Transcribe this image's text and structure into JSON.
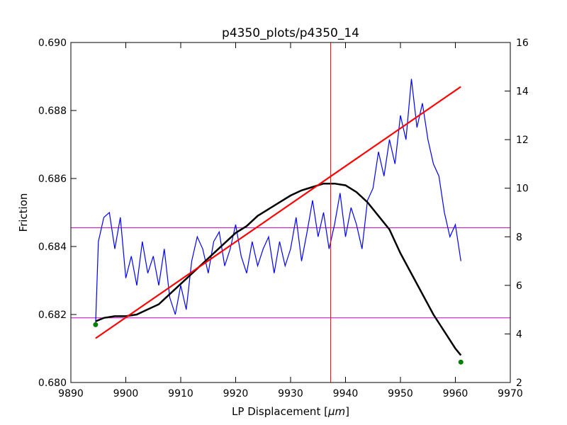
{
  "chart_data": {
    "type": "line",
    "title": "p4350_plots/p4350_14",
    "xlabel": "LP Displacement [",
    "xlabel_unit": "μm",
    "xlabel_close": "]",
    "ylabel": "Friction",
    "y2label": "",
    "xlim": [
      9890,
      9970
    ],
    "ylim": [
      0.68,
      0.69
    ],
    "y2lim": [
      2,
      16
    ],
    "x_ticks": [
      "9890",
      "9900",
      "9910",
      "9920",
      "9930",
      "9940",
      "9950",
      "9960",
      "9970"
    ],
    "y_ticks": [
      "0.680",
      "0.682",
      "0.684",
      "0.686",
      "0.688",
      "0.690"
    ],
    "y2_ticks": [
      "2",
      "4",
      "6",
      "8",
      "10",
      "12",
      "14",
      "16"
    ],
    "grid": false,
    "colors": {
      "friction": "#000000",
      "right_axis_series": "#0000ff",
      "fit_line": "#ff0000",
      "vertical_marker": "#ff0000",
      "horizontal_markers": "#bf00bf",
      "endpoints": "#008000"
    },
    "friction_series": {
      "axis": "left",
      "points": [
        [
          9894.5,
          0.6818
        ],
        [
          9896,
          0.6819
        ],
        [
          9898,
          0.68195
        ],
        [
          9900,
          0.68195
        ],
        [
          9902,
          0.682
        ],
        [
          9904,
          0.68215
        ],
        [
          9906,
          0.6823
        ],
        [
          9908,
          0.6826
        ],
        [
          9910,
          0.6829
        ],
        [
          9912,
          0.6832
        ],
        [
          9914,
          0.6835
        ],
        [
          9916,
          0.6838
        ],
        [
          9918,
          0.6841
        ],
        [
          9920,
          0.6844
        ],
        [
          9922,
          0.6846
        ],
        [
          9924,
          0.6849
        ],
        [
          9926,
          0.6851
        ],
        [
          9928,
          0.6853
        ],
        [
          9930,
          0.6855
        ],
        [
          9932,
          0.68565
        ],
        [
          9934,
          0.68575
        ],
        [
          9936,
          0.68585
        ],
        [
          9938,
          0.68585
        ],
        [
          9940,
          0.6858
        ],
        [
          9942,
          0.6856
        ],
        [
          9944,
          0.6853
        ],
        [
          9946,
          0.6849
        ],
        [
          9948,
          0.6845
        ],
        [
          9950,
          0.6838
        ],
        [
          9952,
          0.6832
        ],
        [
          9954,
          0.6826
        ],
        [
          9956,
          0.682
        ],
        [
          9958,
          0.6815
        ],
        [
          9960,
          0.681
        ],
        [
          9961,
          0.6808
        ]
      ]
    },
    "right_axis_series": {
      "axis": "right",
      "points": [
        [
          9894.5,
          4.4
        ],
        [
          9895,
          7.8
        ],
        [
          9896,
          8.8
        ],
        [
          9897,
          9.0
        ],
        [
          9898,
          7.5
        ],
        [
          9899,
          8.8
        ],
        [
          9900,
          6.3
        ],
        [
          9901,
          7.2
        ],
        [
          9902,
          6.0
        ],
        [
          9903,
          7.8
        ],
        [
          9904,
          6.5
        ],
        [
          9905,
          7.2
        ],
        [
          9906,
          6.0
        ],
        [
          9907,
          7.5
        ],
        [
          9908,
          5.5
        ],
        [
          9909,
          4.8
        ],
        [
          9910,
          6.0
        ],
        [
          9911,
          5.0
        ],
        [
          9912,
          7.0
        ],
        [
          9913,
          8.0
        ],
        [
          9914,
          7.5
        ],
        [
          9915,
          6.5
        ],
        [
          9916,
          7.8
        ],
        [
          9917,
          8.2
        ],
        [
          9918,
          6.8
        ],
        [
          9919,
          7.5
        ],
        [
          9920,
          8.5
        ],
        [
          9921,
          7.2
        ],
        [
          9922,
          6.5
        ],
        [
          9923,
          7.8
        ],
        [
          9924,
          6.8
        ],
        [
          9925,
          7.5
        ],
        [
          9926,
          8.0
        ],
        [
          9927,
          6.5
        ],
        [
          9928,
          7.8
        ],
        [
          9929,
          6.8
        ],
        [
          9930,
          7.5
        ],
        [
          9931,
          8.8
        ],
        [
          9932,
          7.0
        ],
        [
          9933,
          8.2
        ],
        [
          9934,
          9.5
        ],
        [
          9935,
          8.0
        ],
        [
          9936,
          9.0
        ],
        [
          9937,
          7.5
        ],
        [
          9938,
          8.5
        ],
        [
          9939,
          9.8
        ],
        [
          9940,
          8.0
        ],
        [
          9941,
          9.2
        ],
        [
          9942,
          8.5
        ],
        [
          9943,
          7.5
        ],
        [
          9944,
          9.5
        ],
        [
          9945,
          10.0
        ],
        [
          9946,
          11.5
        ],
        [
          9947,
          10.5
        ],
        [
          9948,
          12.0
        ],
        [
          9949,
          11.0
        ],
        [
          9950,
          13.0
        ],
        [
          9951,
          12.0
        ],
        [
          9952,
          14.5
        ],
        [
          9953,
          12.5
        ],
        [
          9954,
          13.5
        ],
        [
          9955,
          12.0
        ],
        [
          9956,
          11.0
        ],
        [
          9957,
          10.5
        ],
        [
          9958,
          9.0
        ],
        [
          9959,
          8.0
        ],
        [
          9960,
          8.5
        ],
        [
          9961,
          7.0
        ]
      ]
    },
    "fit_line": {
      "axis": "left",
      "points": [
        [
          9894.5,
          0.6813
        ],
        [
          9961,
          0.6887
        ]
      ]
    },
    "vertical_marker_x": 9937.3,
    "horizontal_markers_y": [
      0.6819,
      0.68455
    ],
    "endpoints": [
      {
        "x": 9894.5,
        "y": 0.6817
      },
      {
        "x": 9961,
        "y": 0.6806
      }
    ]
  }
}
